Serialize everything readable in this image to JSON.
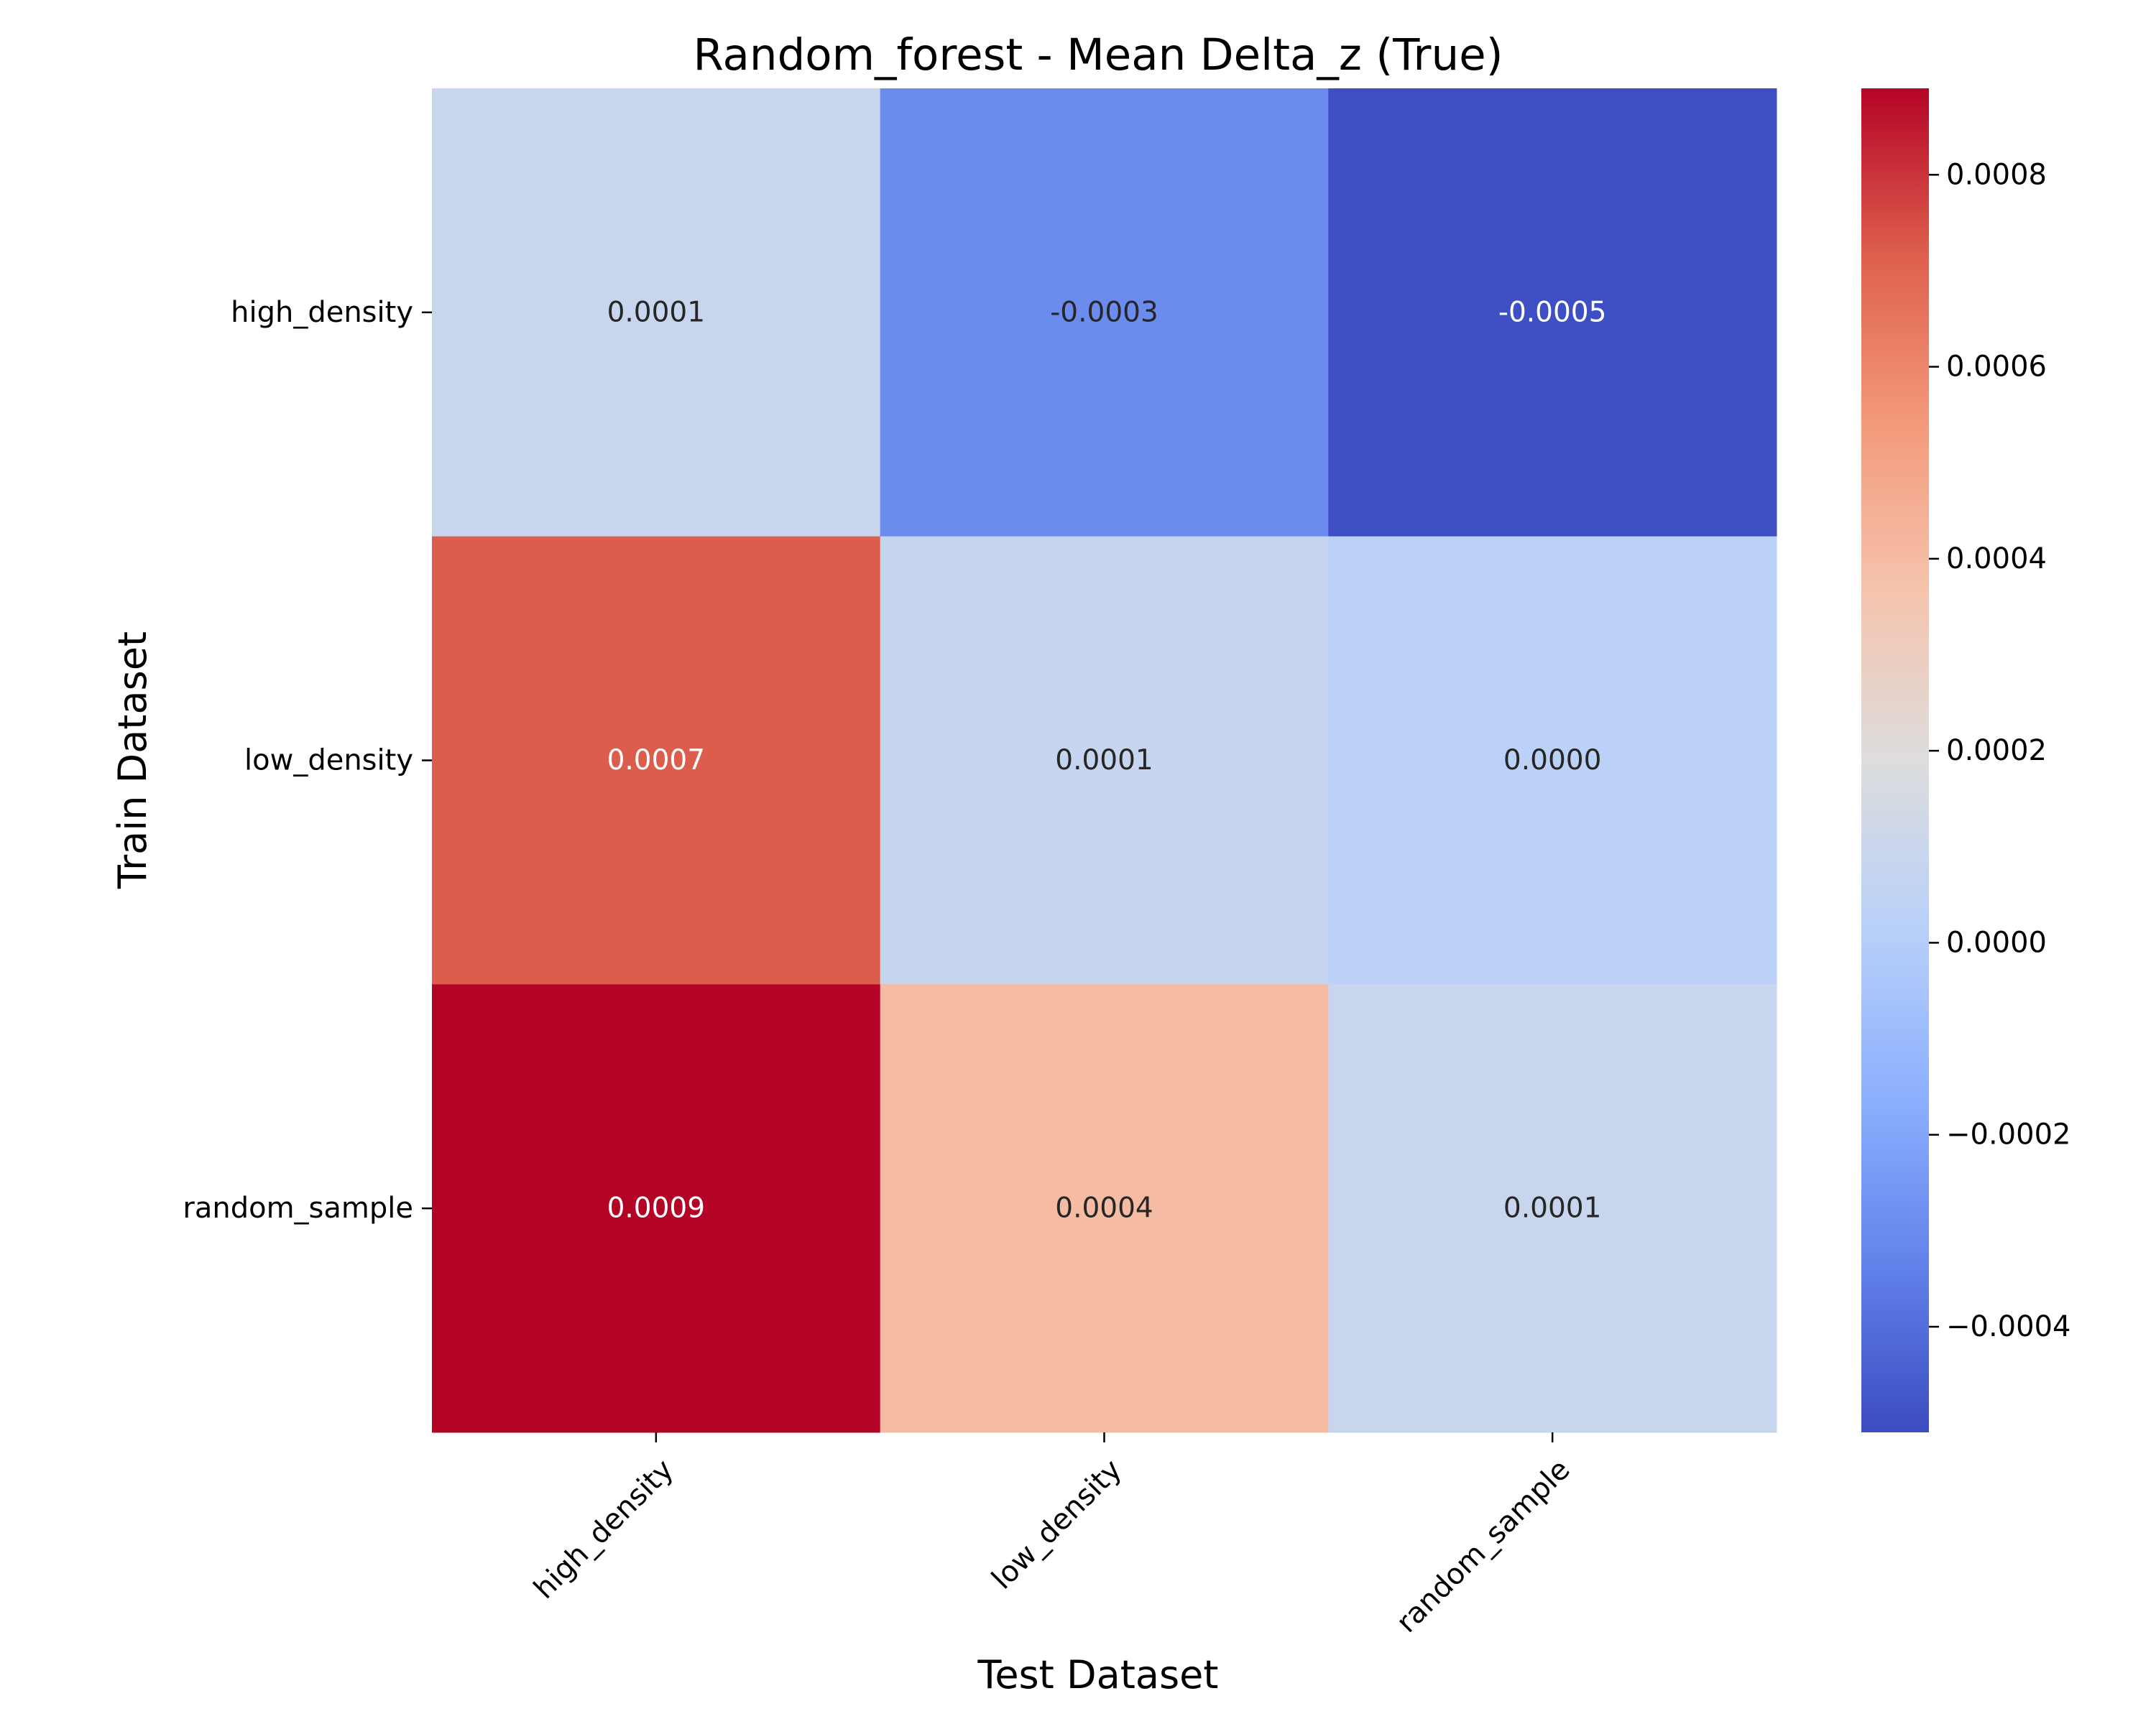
{
  "chart_data": {
    "type": "heatmap",
    "title": "Random_forest - Mean Delta_z (True)",
    "xlabel": "Test Dataset",
    "ylabel": "Train Dataset",
    "x_categories": [
      "high_density",
      "low_density",
      "random_sample"
    ],
    "y_categories": [
      "high_density",
      "low_density",
      "random_sample"
    ],
    "values": [
      [
        9e-05,
        -0.0003,
        -0.0005
      ],
      [
        0.00072,
        8e-05,
        3e-05
      ],
      [
        0.00089,
        0.0004,
        9e-05
      ]
    ],
    "cell_labels": [
      [
        "0.0001",
        "-0.0003",
        "-0.0005"
      ],
      [
        "0.0007",
        "0.0001",
        "0.0000"
      ],
      [
        "0.0009",
        "0.0004",
        "0.0001"
      ]
    ],
    "colormap": "coolwarm",
    "colorbar": {
      "range": [
        -0.00051,
        0.00089
      ],
      "ticks": [
        0.0008,
        0.0006,
        0.0004,
        0.0002,
        0.0,
        -0.0002,
        -0.0004
      ],
      "tick_labels": [
        "0.0008",
        "0.0006",
        "0.0004",
        "0.0002",
        "0.0000",
        "−0.0002",
        "−0.0004"
      ]
    },
    "grid": false
  }
}
